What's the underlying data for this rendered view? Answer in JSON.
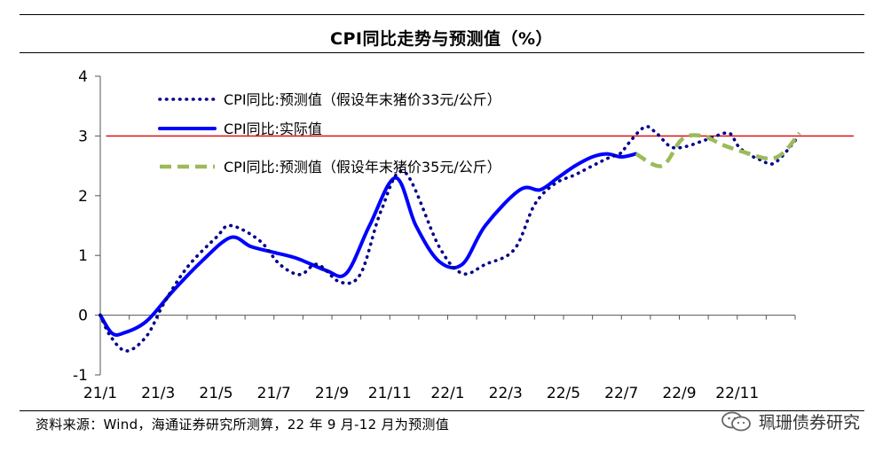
{
  "header": {
    "title": "CPI同比走势与预测值（%）"
  },
  "footer": {
    "source": "资料来源：Wind，海通证券研究所测算，22 年 9 月-12 月为预测值",
    "brand": "珮珊债券研究",
    "brand_icon": "wechat-icon"
  },
  "chart_data": {
    "type": "line",
    "title": "CPI同比走势与预测值（%）",
    "xlabel": "",
    "ylabel": "",
    "ylim": [
      -1,
      4
    ],
    "yticks": [
      "-1",
      "0",
      "1",
      "2",
      "3",
      "4"
    ],
    "xticklabels": [
      "21/1",
      "21/3",
      "21/5",
      "21/7",
      "21/9",
      "21/11",
      "22/1",
      "22/3",
      "22/5",
      "22/7",
      "22/9",
      "22/11"
    ],
    "grid": false,
    "legend_position": "top-left",
    "reference_line": {
      "y": 3,
      "color": "#e00000"
    },
    "series": [
      {
        "name": "CPI同比:预测值（假设年末猪价33元/公斤）",
        "style": "dotted",
        "color": "#00008b",
        "x": [
          0,
          0.35,
          0.9,
          1.6,
          2.2,
          3,
          4,
          4.5,
          5.5,
          6.2,
          6.9,
          7.5,
          8.3,
          9,
          9.7,
          10.5,
          11.7,
          12.5,
          13.3,
          14.3,
          15,
          15.7,
          16.4,
          17,
          17.5,
          18,
          18.2,
          18.8,
          19.2,
          19.7,
          20.2,
          21,
          21.7,
          22,
          22.3,
          22.8,
          23.3,
          24.05
        ],
        "values": [
          0,
          -0.35,
          -0.6,
          -0.35,
          0.2,
          0.8,
          1.3,
          1.5,
          1.25,
          0.85,
          0.68,
          0.85,
          0.55,
          0.7,
          1.75,
          2.4,
          1.15,
          0.7,
          0.85,
          1.1,
          1.85,
          2.2,
          2.35,
          2.5,
          2.62,
          2.72,
          2.85,
          3.15,
          3.05,
          2.82,
          2.82,
          2.95,
          3.05,
          2.85,
          2.72,
          2.6,
          2.55,
          2.95
        ]
      },
      {
        "name": "CPI同比:实际值",
        "style": "solid",
        "color": "#0000ff",
        "x": [
          0,
          0.4,
          0.8,
          1.6,
          2.5,
          3.5,
          4.5,
          5.2,
          6,
          6.8,
          7.8,
          8.5,
          9.3,
          10.2,
          10.9,
          11.7,
          12.5,
          13.3,
          14.5,
          15.2,
          15.8,
          16.4,
          17,
          17.5,
          18,
          18.5
        ],
        "values": [
          0,
          -0.3,
          -0.3,
          -0.1,
          0.4,
          0.9,
          1.3,
          1.15,
          1.05,
          0.95,
          0.75,
          0.7,
          1.5,
          2.3,
          1.5,
          0.9,
          0.85,
          1.5,
          2.1,
          2.1,
          2.3,
          2.5,
          2.65,
          2.7,
          2.65,
          2.7
        ]
      },
      {
        "name": "CPI同比:预测值（假设年末猪价35元/公斤）",
        "style": "dashed",
        "color": "#9bbb59",
        "x": [
          18.5,
          19.4,
          20.1,
          20.8,
          21.5,
          22.3,
          23.1,
          23.6,
          24.15
        ],
        "values": [
          2.7,
          2.5,
          2.95,
          3.0,
          2.85,
          2.72,
          2.62,
          2.72,
          3.05
        ]
      }
    ]
  }
}
